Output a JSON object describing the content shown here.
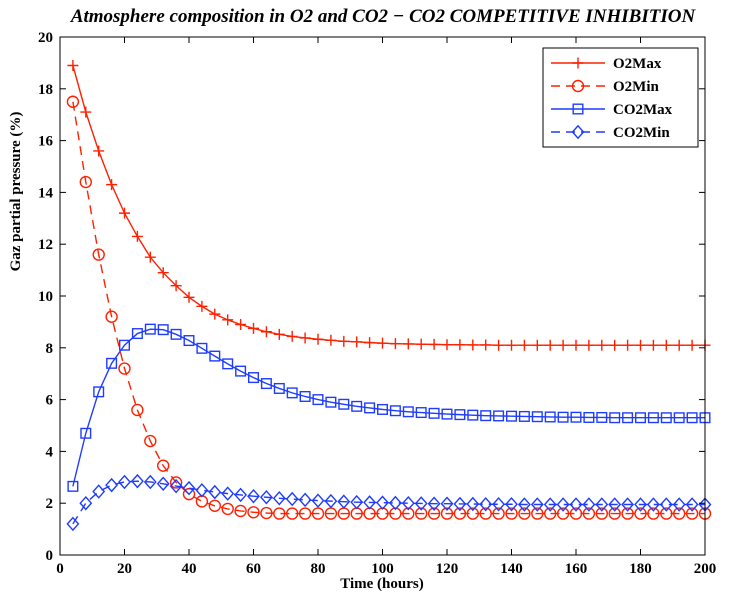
{
  "chart_data": {
    "type": "line",
    "title": "Atmosphere composition in O2 and CO2 − CO2 COMPETITIVE INHIBITION",
    "xlabel": "Time (hours)",
    "ylabel": "Gaz partial pressure (%)",
    "xlim": [
      0,
      200
    ],
    "ylim": [
      0,
      20
    ],
    "xticks": [
      0,
      20,
      40,
      60,
      80,
      100,
      120,
      140,
      160,
      180,
      200
    ],
    "yticks": [
      0,
      2,
      4,
      6,
      8,
      10,
      12,
      14,
      16,
      18,
      20
    ],
    "grid": false,
    "legend_position": "top-right",
    "x": [
      4,
      8,
      12,
      16,
      20,
      24,
      28,
      32,
      36,
      40,
      44,
      48,
      52,
      56,
      60,
      64,
      68,
      72,
      76,
      80,
      84,
      88,
      92,
      96,
      100,
      104,
      108,
      112,
      116,
      120,
      124,
      128,
      132,
      136,
      140,
      144,
      148,
      152,
      156,
      160,
      164,
      168,
      172,
      176,
      180,
      184,
      188,
      192,
      196,
      200
    ],
    "series": [
      {
        "name": "O2Max",
        "color": "#ff2000",
        "line": "solid",
        "marker": "plus",
        "values": [
          18.9,
          17.1,
          15.6,
          14.3,
          13.2,
          12.3,
          11.5,
          10.9,
          10.4,
          9.95,
          9.6,
          9.3,
          9.08,
          8.9,
          8.75,
          8.62,
          8.52,
          8.44,
          8.38,
          8.33,
          8.29,
          8.25,
          8.23,
          8.2,
          8.18,
          8.16,
          8.15,
          8.14,
          8.13,
          8.12,
          8.12,
          8.11,
          8.11,
          8.1,
          8.1,
          8.1,
          8.1,
          8.1,
          8.1,
          8.1,
          8.1,
          8.1,
          8.1,
          8.1,
          8.1,
          8.1,
          8.1,
          8.1,
          8.1,
          8.1
        ]
      },
      {
        "name": "O2Min",
        "color": "#ff2000",
        "line": "dashed",
        "marker": "circle",
        "values": [
          17.5,
          14.4,
          11.6,
          9.2,
          7.2,
          5.6,
          4.4,
          3.45,
          2.8,
          2.35,
          2.07,
          1.9,
          1.78,
          1.7,
          1.65,
          1.62,
          1.6,
          1.6,
          1.6,
          1.6,
          1.6,
          1.6,
          1.6,
          1.6,
          1.6,
          1.6,
          1.6,
          1.6,
          1.6,
          1.6,
          1.6,
          1.6,
          1.6,
          1.6,
          1.6,
          1.6,
          1.6,
          1.6,
          1.6,
          1.6,
          1.6,
          1.6,
          1.6,
          1.6,
          1.6,
          1.6,
          1.6,
          1.6,
          1.6,
          1.6
        ]
      },
      {
        "name": "CO2Max",
        "color": "#1e3cff",
        "line": "solid",
        "marker": "square",
        "values": [
          2.65,
          4.7,
          6.3,
          7.4,
          8.1,
          8.55,
          8.72,
          8.7,
          8.52,
          8.28,
          7.98,
          7.68,
          7.38,
          7.1,
          6.85,
          6.62,
          6.43,
          6.26,
          6.12,
          6.0,
          5.9,
          5.82,
          5.74,
          5.68,
          5.62,
          5.57,
          5.53,
          5.5,
          5.47,
          5.44,
          5.42,
          5.4,
          5.38,
          5.37,
          5.36,
          5.35,
          5.34,
          5.33,
          5.32,
          5.32,
          5.31,
          5.31,
          5.3,
          5.3,
          5.3,
          5.3,
          5.3,
          5.3,
          5.3,
          5.3
        ]
      },
      {
        "name": "CO2Min",
        "color": "#1e3cff",
        "line": "dashed",
        "marker": "diamond",
        "values": [
          1.2,
          2.0,
          2.45,
          2.7,
          2.82,
          2.85,
          2.82,
          2.75,
          2.66,
          2.58,
          2.5,
          2.43,
          2.37,
          2.32,
          2.27,
          2.23,
          2.19,
          2.16,
          2.13,
          2.1,
          2.08,
          2.06,
          2.04,
          2.03,
          2.02,
          2.01,
          2.0,
          1.99,
          1.98,
          1.98,
          1.97,
          1.97,
          1.96,
          1.96,
          1.96,
          1.95,
          1.95,
          1.95,
          1.95,
          1.95,
          1.95,
          1.95,
          1.95,
          1.95,
          1.95,
          1.95,
          1.95,
          1.95,
          1.95,
          1.95
        ]
      }
    ]
  }
}
